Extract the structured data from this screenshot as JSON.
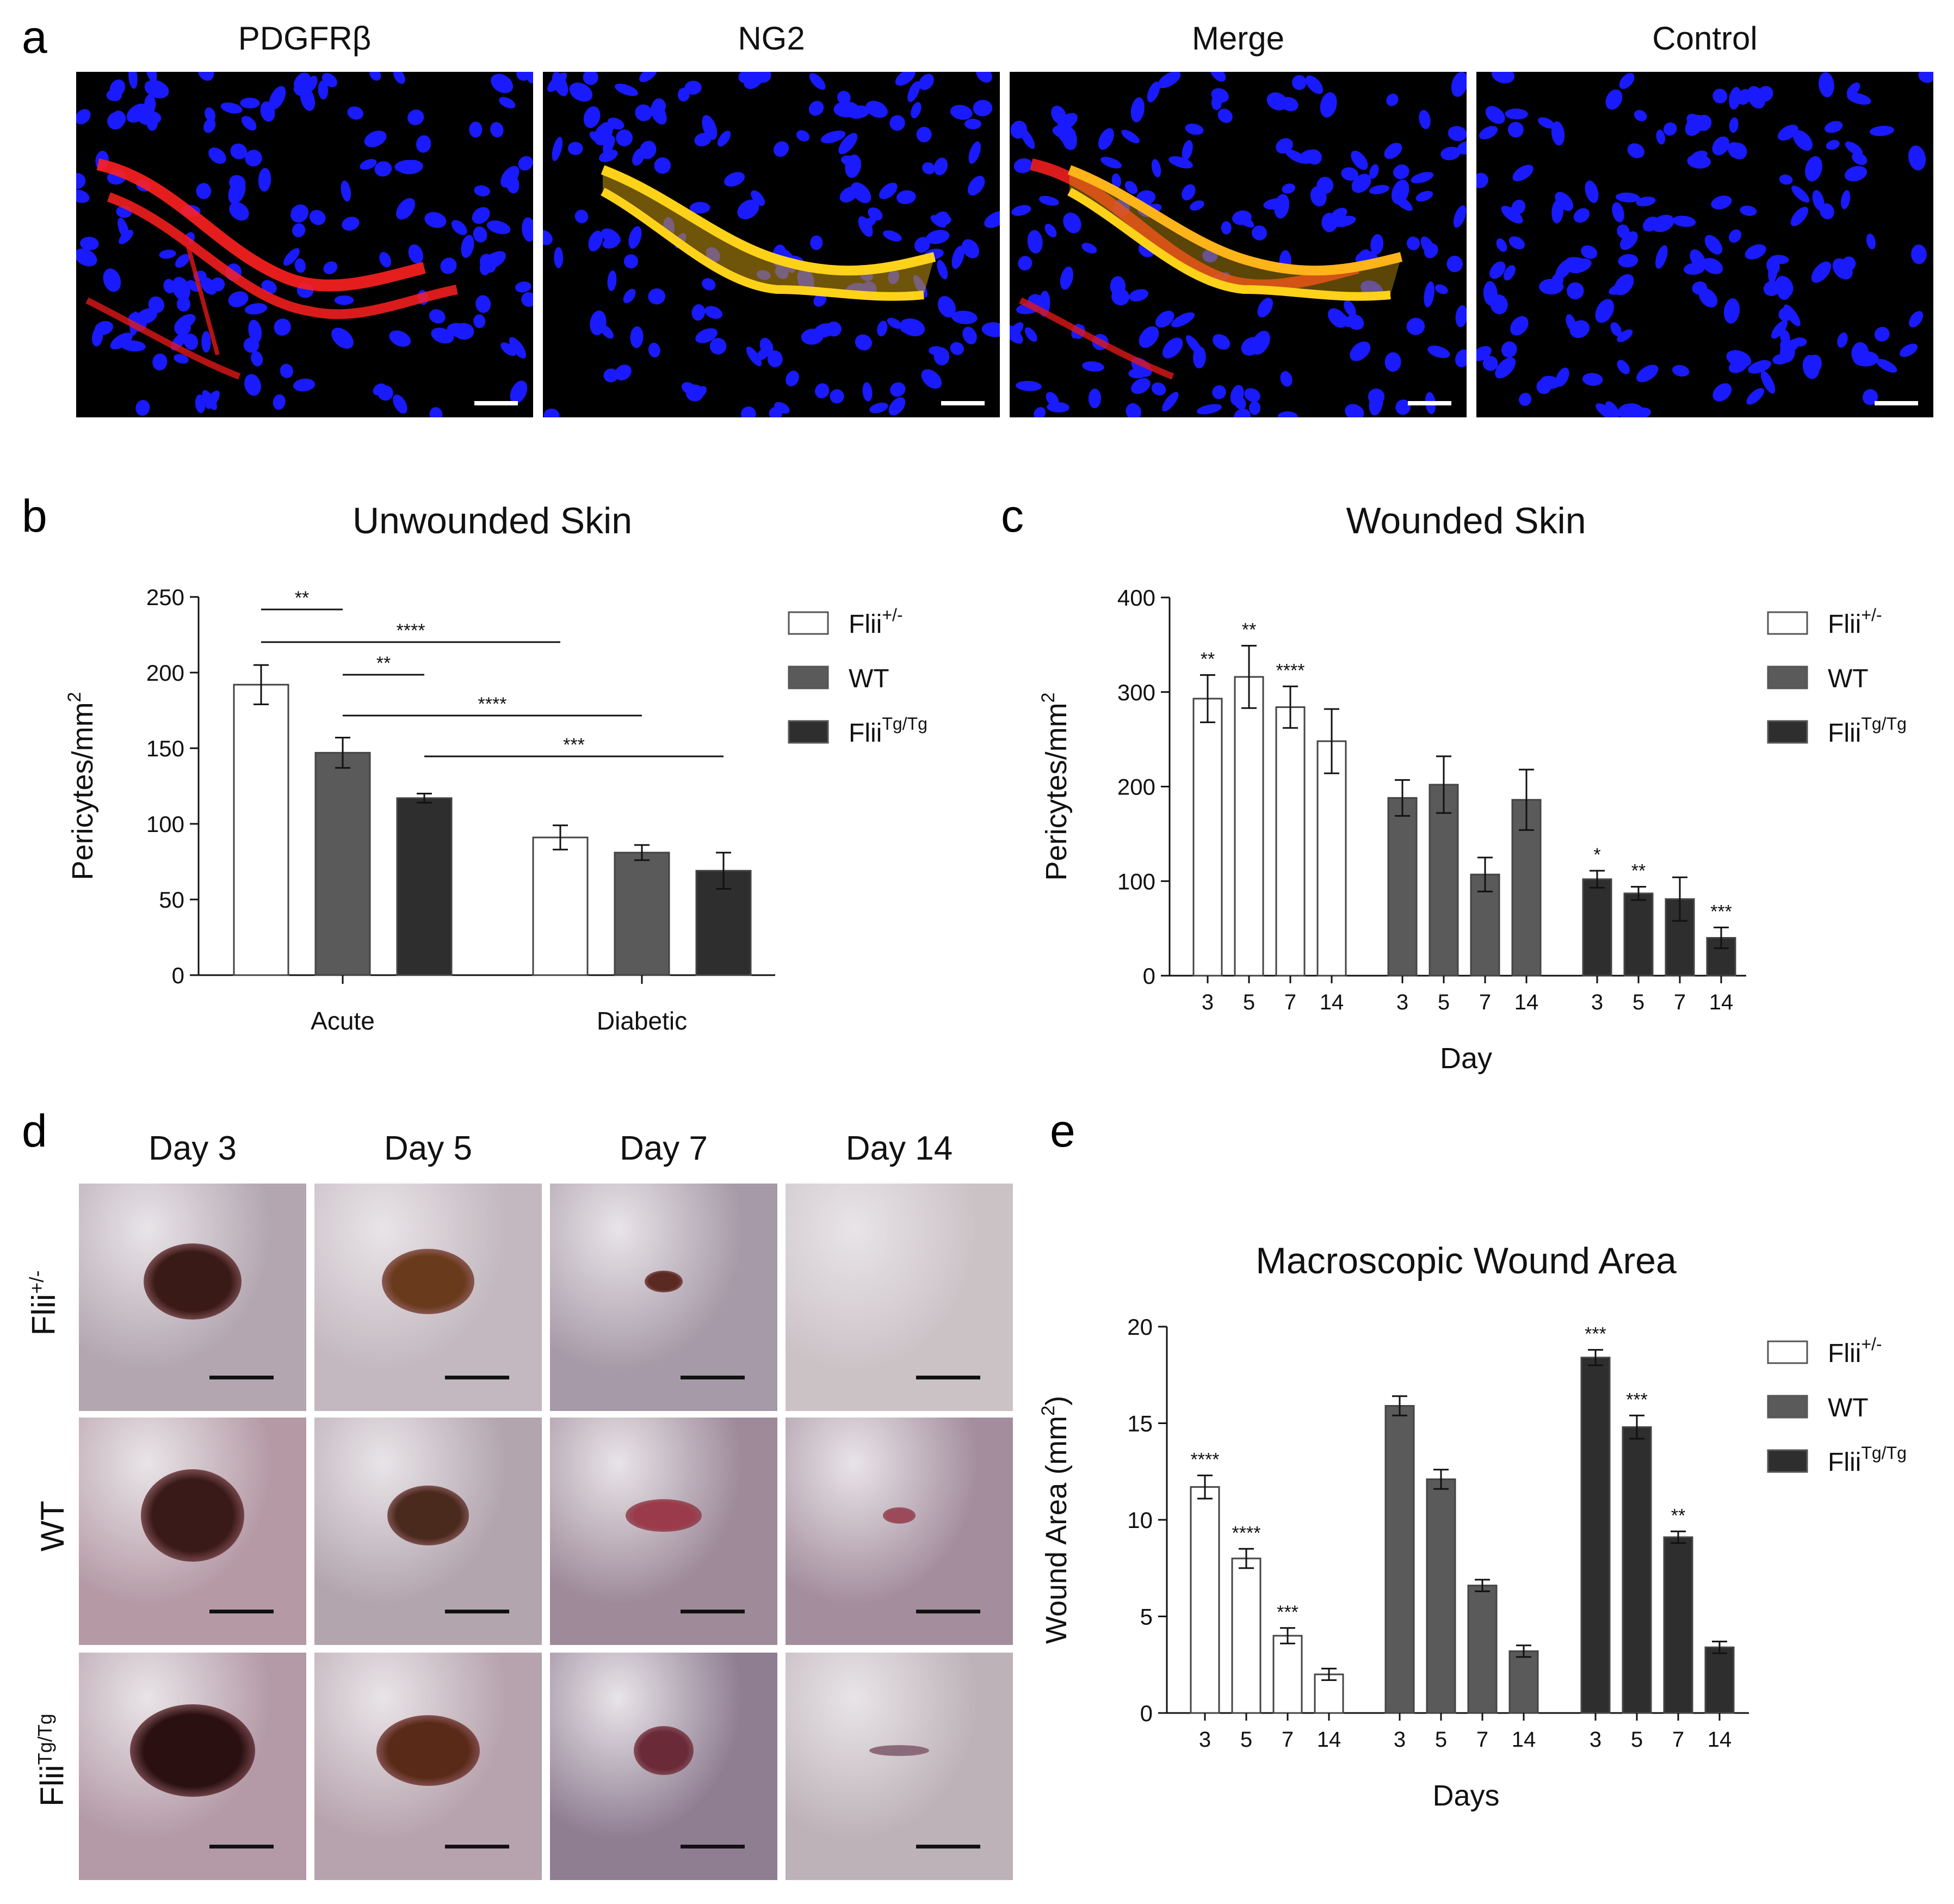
{
  "panel_labels": {
    "a": "a",
    "b": "b",
    "c": "c",
    "d": "d",
    "e": "e"
  },
  "panel_a": {
    "titles": [
      "PDGFRβ",
      "NG2",
      "Merge",
      "Control"
    ],
    "colors": {
      "background": "#000000",
      "nuclei": "#1f1fff",
      "pdgfrb": "#ff2020",
      "ng2": "#ffd21a"
    }
  },
  "panel_d": {
    "column_titles": [
      "Day 3",
      "Day 5",
      "Day 7",
      "Day 14"
    ],
    "row_labels": [
      {
        "base": "Flii",
        "sup": "+/-"
      },
      {
        "base": "WT",
        "sup": ""
      },
      {
        "base": "Flii",
        "sup": "Tg/Tg"
      }
    ]
  },
  "legend": [
    {
      "base": "Flii",
      "sup": "+/-",
      "color": "#ffffff"
    },
    {
      "base": "WT",
      "sup": "",
      "color": "#5a5a5a"
    },
    {
      "base": "Flii",
      "sup": "Tg/Tg",
      "color": "#2e2e2e"
    }
  ],
  "chart_data": [
    {
      "id": "b",
      "type": "bar",
      "title": "Unwounded Skin",
      "ylabel": "Pericytes/mm",
      "ylabel_sup": "2",
      "xlabel": "",
      "ylim": [
        0,
        250
      ],
      "yticks": [
        0,
        50,
        100,
        150,
        200,
        250
      ],
      "categories": [
        "Acute",
        "Diabetic"
      ],
      "series": [
        {
          "name": "Flii+/-",
          "values": [
            192,
            91
          ],
          "errors": [
            13,
            8
          ]
        },
        {
          "name": "WT",
          "values": [
            147,
            81
          ],
          "errors": [
            10,
            5
          ]
        },
        {
          "name": "FliiTg/Tg",
          "values": [
            117,
            69
          ],
          "errors": [
            3,
            12
          ]
        }
      ],
      "significance": [
        {
          "from": [
            0,
            0
          ],
          "to": [
            0,
            1
          ],
          "label": "**"
        },
        {
          "from": [
            0,
            0
          ],
          "to": [
            1,
            0
          ],
          "label": "****"
        },
        {
          "from": [
            0,
            1
          ],
          "to": [
            0,
            2
          ],
          "label": "**"
        },
        {
          "from": [
            0,
            1
          ],
          "to": [
            1,
            1
          ],
          "label": "****"
        },
        {
          "from": [
            0,
            2
          ],
          "to": [
            1,
            2
          ],
          "label": "***"
        }
      ]
    },
    {
      "id": "c",
      "type": "bar",
      "title": "Wounded Skin",
      "ylabel": "Pericytes/mm",
      "ylabel_sup": "2",
      "xlabel": "Day",
      "ylim": [
        0,
        400
      ],
      "yticks": [
        0,
        100,
        200,
        300,
        400
      ],
      "x": [
        "3",
        "5",
        "7",
        "14"
      ],
      "series": [
        {
          "name": "Flii+/-",
          "values": [
            293,
            316,
            284,
            248
          ],
          "errors": [
            25,
            33,
            22,
            34
          ],
          "stars": [
            "**",
            "**",
            "****",
            ""
          ]
        },
        {
          "name": "WT",
          "values": [
            188,
            202,
            107,
            186
          ],
          "errors": [
            19,
            30,
            18,
            32
          ],
          "stars": [
            "",
            "",
            "",
            ""
          ]
        },
        {
          "name": "FliiTg/Tg",
          "values": [
            102,
            87,
            81,
            40
          ],
          "errors": [
            9,
            7,
            23,
            11
          ],
          "stars": [
            "*",
            "**",
            "",
            "***"
          ]
        }
      ]
    },
    {
      "id": "e",
      "type": "bar",
      "title": "Macroscopic Wound Area",
      "ylabel": "Wound Area (mm",
      "ylabel_sup": "2",
      "ylabel_tail": ")",
      "xlabel": "Days",
      "ylim": [
        0,
        20
      ],
      "yticks": [
        0,
        5,
        10,
        15,
        20
      ],
      "x": [
        "3",
        "5",
        "7",
        "14"
      ],
      "series": [
        {
          "name": "Flii+/-",
          "values": [
            11.7,
            8.0,
            4.0,
            2.0
          ],
          "errors": [
            0.6,
            0.5,
            0.4,
            0.3
          ],
          "stars": [
            "****",
            "****",
            "***",
            ""
          ]
        },
        {
          "name": "WT",
          "values": [
            15.9,
            12.1,
            6.6,
            3.2
          ],
          "errors": [
            0.5,
            0.5,
            0.3,
            0.3
          ],
          "stars": [
            "",
            "",
            "",
            ""
          ]
        },
        {
          "name": "FliiTg/Tg",
          "values": [
            18.4,
            14.8,
            9.1,
            3.4
          ],
          "errors": [
            0.4,
            0.6,
            0.3,
            0.3
          ],
          "stars": [
            "***",
            "***",
            "**",
            ""
          ]
        }
      ]
    }
  ]
}
